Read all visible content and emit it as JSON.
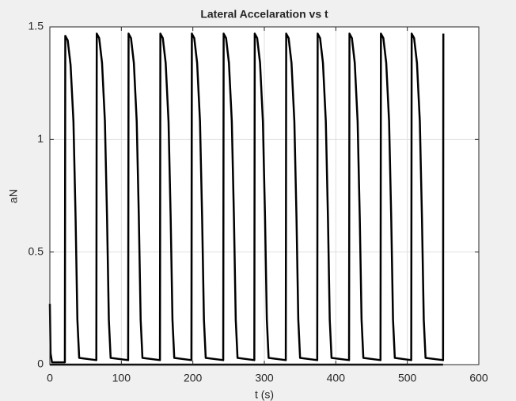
{
  "chart_data": {
    "type": "line",
    "title": "Lateral Accelaration vs t",
    "xlabel": "t (s)",
    "ylabel": "aN",
    "xlim": [
      0,
      600
    ],
    "xticks": [
      0,
      100,
      200,
      300,
      400,
      500,
      600
    ],
    "ylim": [
      0,
      1.5
    ],
    "yticks": [
      0,
      0.5,
      1,
      1.5
    ],
    "grid": true,
    "series": [
      {
        "color": "#000000",
        "x": [
          0,
          1,
          3,
          21,
          21.6,
          25,
          29,
          33,
          36,
          38.5,
          41,
          65,
          65.6,
          69,
          73,
          77,
          80,
          82.5,
          85,
          109.5,
          110.1,
          113.5,
          117.5,
          121.5,
          124.5,
          127,
          129.5,
          154,
          154.6,
          158,
          162,
          166,
          169,
          171.5,
          174,
          198,
          198.6,
          202,
          206,
          210,
          213,
          215.5,
          218,
          242.5,
          243.1,
          246.5,
          250.5,
          254.5,
          257.5,
          260,
          262.5,
          286,
          286.6,
          290,
          294,
          298,
          301,
          303.5,
          306,
          330,
          330.6,
          334,
          338,
          342,
          345,
          347.5,
          350,
          374,
          374.6,
          378,
          382,
          386,
          389,
          391.5,
          394,
          418.5,
          419.1,
          422.5,
          426.5,
          430.5,
          433.5,
          436,
          438.5,
          462.5,
          463.1,
          466.5,
          470.5,
          474.5,
          477.5,
          480,
          482.5,
          505.5,
          506.1,
          509.5,
          513.5,
          517.5,
          520.5,
          523,
          525.5,
          550,
          550.4
        ],
        "values": [
          0.27,
          0.05,
          0.01,
          0.01,
          1.46,
          1.44,
          1.33,
          1.08,
          0.65,
          0.2,
          0.03,
          0.02,
          1.47,
          1.45,
          1.34,
          1.08,
          0.65,
          0.2,
          0.03,
          0.02,
          1.47,
          1.45,
          1.34,
          1.08,
          0.65,
          0.2,
          0.03,
          0.02,
          1.47,
          1.45,
          1.34,
          1.08,
          0.65,
          0.2,
          0.03,
          0.02,
          1.47,
          1.45,
          1.34,
          1.08,
          0.65,
          0.2,
          0.03,
          0.02,
          1.47,
          1.45,
          1.34,
          1.08,
          0.65,
          0.2,
          0.03,
          0.02,
          1.47,
          1.45,
          1.34,
          1.08,
          0.65,
          0.2,
          0.03,
          0.02,
          1.47,
          1.45,
          1.34,
          1.08,
          0.65,
          0.2,
          0.03,
          0.02,
          1.47,
          1.45,
          1.34,
          1.08,
          0.65,
          0.2,
          0.03,
          0.02,
          1.47,
          1.45,
          1.34,
          1.08,
          0.65,
          0.2,
          0.03,
          0.02,
          1.47,
          1.45,
          1.34,
          1.08,
          0.65,
          0.2,
          0.03,
          0.02,
          1.47,
          1.45,
          1.34,
          1.08,
          0.65,
          0.2,
          0.03,
          0.02,
          1.47
        ]
      },
      {
        "color": "#000000",
        "x": [
          0,
          550
        ],
        "values": [
          0,
          0
        ]
      }
    ]
  }
}
